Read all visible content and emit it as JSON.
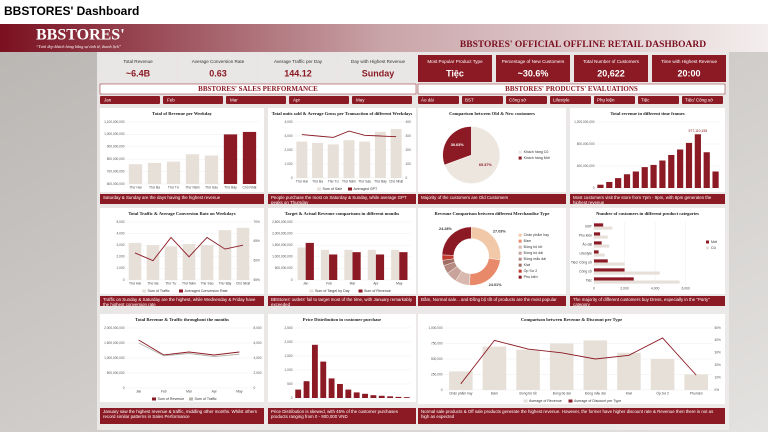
{
  "header": {
    "page_title": "BBSTORES' Dashboard",
    "logo": "BBSTORES'",
    "tagline": "“Tươi đẹp khách hàng bằng sự tinh tế, thanh lịch”",
    "title": "BBSTORES' OFFICIAL OFFLINE RETAIL DASHBOARD"
  },
  "kpis": [
    {
      "label": "Total Revenue",
      "value": "~6.4B"
    },
    {
      "label": "Average Conversion Rate",
      "value": "0.63"
    },
    {
      "label": "Average Traffic per Day",
      "value": "144.12"
    },
    {
      "label": "Day with Highest Revenue",
      "value": "Sunday"
    },
    {
      "label": "Most Popular Product Type",
      "value": "Tiệc"
    },
    {
      "label": "Percentage of New Customers",
      "value": "~30.6%"
    },
    {
      "label": "Total Number of Customers",
      "value": "20,622"
    },
    {
      "label": "Time with Highest Revenue",
      "value": "20:00"
    }
  ],
  "sections": [
    "BBSTORES' SALES PERFORMANCE",
    "BBSTORES' PRODUCTS' EVALUATIONS"
  ],
  "month_tabs": [
    "Jan",
    "Feb",
    "Mar",
    "Apr",
    "May"
  ],
  "product_tabs": [
    "Áo dài",
    "BST",
    "Công sở",
    "Lifestyle",
    "Phụ kiện",
    "Tiệc",
    "Tiệc/ Công sở"
  ],
  "captions": [
    "Saturday & Sunday are the days having the highest revenue",
    "People purchase the most on Saturday & Sunday, while average GPT peaks on Thursday",
    "Traffic on Sunday & Saturday are the highest, while Wednesday & Friday have the highest conversion rate",
    "BBStores' outlets' fail to target most of the time, with January remarkably exceeded",
    "January saw the highest revenue & traffic, middling other months. Whilst others record similar patterns in Sales Performance",
    "Price Distribution is skewed, with 45% of the customer purchases products ranging from 0 - 900,000 VND",
    "Majority of the customers are Old Customers",
    "Most customers visit the store from 7pm - 9pm, with 8pm generates the highest revenue",
    "Đầm, Normal sale... and Đồng bộ tốt of products are the most popular",
    "The majority of different customers buy Dress, especially in the \"Party\" category",
    "Normal sale products & Off sale products generate the highest revenue. However, the former have higher discount rate & Revenue then there is not as high as expected"
  ],
  "chart_data": [
    {
      "type": "bar",
      "title": "Total of Revenue per Weekday",
      "categories": [
        "Thứ Hai",
        "Thứ Ba",
        "Thứ Tư",
        "Thứ Năm",
        "Thứ Sáu",
        "Thứ Bảy",
        "Chủ Nhật"
      ],
      "series": [
        {
          "color": [
            "#e6e0d8",
            "#e6e0d8",
            "#e6e0d8",
            "#e6e0d8",
            "#e6e0d8",
            "#8b1a24",
            "#8b1a24"
          ],
          "values": [
            760000000,
            770000000,
            780000000,
            840000000,
            830000000,
            1000000000,
            1020000000
          ]
        }
      ],
      "ylim": [
        600000000,
        1100000000
      ],
      "yticks": [
        {
          "value": 600000000,
          "label": "600,000,000"
        },
        {
          "value": 700000000,
          "label": "700,000,000"
        },
        {
          "value": 800000000,
          "label": "800,000,000"
        },
        {
          "value": 900000000,
          "label": "900,000,000"
        },
        {
          "value": 1000000000,
          "label": "1,000,000,000"
        },
        {
          "value": 1100000000,
          "label": "1,100,000,000"
        }
      ],
      "grid": true
    },
    {
      "type": "combo",
      "title": "Total units sold & Average Gross per Transaction of different Weekdays",
      "categories": [
        "Thứ Hai",
        "Thứ Ba",
        "Thứ Tư",
        "Thứ Năm",
        "Thứ Sáu",
        "Thứ Bảy",
        "Chủ Nhật"
      ],
      "series": [
        {
          "name": "Sum of Sale",
          "type": "bar",
          "color": "#e6e0d8",
          "values": [
            2600,
            2500,
            2400,
            2700,
            2600,
            3300,
            3500
          ]
        },
        {
          "name": "Averaged GPT",
          "type": "line",
          "axis": "y2",
          "color": "#8b1a24",
          "values": [
            310,
            300,
            290,
            335,
            305,
            300,
            295
          ]
        }
      ],
      "ylim": [
        0,
        4000
      ],
      "yticks": [
        0,
        {
          "value": 1000,
          "label": "1,000"
        },
        {
          "value": 2000,
          "label": "2,000"
        },
        {
          "value": 3000,
          "label": "3,000"
        },
        {
          "value": 4000,
          "label": "4,000"
        }
      ],
      "y2lim": [
        0,
        400
      ],
      "y2ticks": [
        0,
        100,
        200,
        300,
        400
      ],
      "grid": true
    },
    {
      "type": "combo",
      "title": "Total Traffic & Average Conversion Rate on Weekdays",
      "categories": [
        "Thứ Hai",
        "Thứ Ba",
        "Thứ Tư",
        "Thứ Năm",
        "Thứ Sáu",
        "Thứ Bảy",
        "Chủ Nhật"
      ],
      "series": [
        {
          "name": "Sum of Traffic",
          "type": "bar",
          "color": "#e6e0d8",
          "values": [
            3200,
            3000,
            2900,
            3100,
            3000,
            4300,
            4500
          ]
        },
        {
          "name": "Averaged Conversion Rate",
          "type": "line",
          "axis": "y2",
          "color": "#8b1a24",
          "values": [
            0.62,
            0.6,
            0.66,
            0.61,
            0.66,
            0.63,
            0.64
          ]
        }
      ],
      "ylim": [
        0,
        5000
      ],
      "yticks": [
        0,
        {
          "value": 1000,
          "label": "1,000"
        },
        {
          "value": 2000,
          "label": "2,000"
        },
        {
          "value": 3000,
          "label": "3,000"
        },
        {
          "value": 4000,
          "label": "4,000"
        },
        {
          "value": 5000,
          "label": "5,000"
        }
      ],
      "y2lim": [
        0.55,
        0.7
      ],
      "y2ticks": [
        {
          "value": 0.55,
          "label": "55%"
        },
        {
          "value": 0.6,
          "label": "60%"
        },
        {
          "value": 0.65,
          "label": "65%"
        },
        {
          "value": 0.7,
          "label": "70%"
        }
      ],
      "grid": true
    },
    {
      "type": "bar",
      "title": "Target & Actual Revenue comparisons in different months",
      "categories": [
        "Jan",
        "Feb",
        "Mar",
        "Apr",
        "May"
      ],
      "series": [
        {
          "name": "Sum of Target by Day",
          "color": "#e6e0d8",
          "values": [
            1400000000,
            1300000000,
            1300000000,
            1300000000,
            1300000000
          ]
        },
        {
          "name": "Sum of Revenue",
          "color": "#8b1a24",
          "values": [
            1600000000,
            1100000000,
            1200000000,
            1100000000,
            1200000000
          ]
        }
      ],
      "ylim": [
        0,
        2500000000
      ],
      "yticks": [
        0,
        {
          "value": 500000000,
          "label": "500,000,000"
        },
        {
          "value": 1000000000,
          "label": "1,000,000,000"
        },
        {
          "value": 1500000000,
          "label": "1,500,000,000"
        },
        {
          "value": 2000000000,
          "label": "2,000,000,000"
        },
        {
          "value": 2500000000,
          "label": "2,500,000,000"
        }
      ],
      "grid": true
    },
    {
      "type": "combo",
      "title": "Total Revenue & Traffic throughout the months",
      "categories": [
        "Jan",
        "Feb",
        "Mar",
        "Apr",
        "May"
      ],
      "series": [
        {
          "name": "Sum of Revenue",
          "type": "line",
          "color": "#8b1a24",
          "values": [
            1600000000,
            1100000000,
            1200000000,
            1100000000,
            1200000000
          ]
        },
        {
          "name": "Sum of Traffic",
          "type": "line",
          "axis": "y2",
          "color": "#b9b3ad",
          "values": [
            6000,
            4300,
            4600,
            4200,
            4500
          ]
        }
      ],
      "ylim": [
        0,
        2000000000
      ],
      "yticks": [
        0,
        {
          "value": 500000000,
          "label": "500,000,000"
        },
        {
          "value": 1000000000,
          "label": "1,000,000,000"
        },
        {
          "value": 1500000000,
          "label": "1,500,000,000"
        },
        {
          "value": 2000000000,
          "label": "2,000,000,000"
        }
      ],
      "y2lim": [
        0,
        8000
      ],
      "y2ticks": [
        0,
        {
          "value": 2000,
          "label": "2,000"
        },
        {
          "value": 4000,
          "label": "4,000"
        },
        {
          "value": 6000,
          "label": "6,000"
        },
        {
          "value": 8000,
          "label": "8,000"
        }
      ],
      "grid": true
    },
    {
      "type": "bar",
      "title": "Price Distribution in customer purchase",
      "categories": [
        null,
        null,
        null,
        null,
        null,
        null,
        null,
        null,
        null,
        null,
        null,
        null,
        null,
        null
      ],
      "series": [
        {
          "color": "#8b1a24",
          "values": [
            300,
            600,
            1900,
            1300,
            700,
            500,
            300,
            200,
            150,
            100,
            80,
            60,
            40,
            30
          ]
        }
      ],
      "ylim": [
        0,
        2500
      ],
      "yticks": [
        0,
        500,
        {
          "value": 1000,
          "label": "1,000"
        },
        {
          "value": 1500,
          "label": "1,500"
        },
        {
          "value": 2000,
          "label": "2,000"
        },
        {
          "value": 2500,
          "label": "2,500"
        }
      ],
      "grid": true
    },
    {
      "type": "pie",
      "title": "Comparison between Old & New customers",
      "categories": [
        "Khách hàng Cũ",
        "Khách hàng Mới"
      ],
      "values": [
        69.37,
        30.63
      ],
      "value_labels": [
        "69.37%",
        "30.63%"
      ],
      "colors": [
        "#ece6df",
        "#8b1a24"
      ]
    },
    {
      "type": "bar",
      "title": "Total revenue in different time frames",
      "categories": [
        null,
        null,
        null,
        null,
        null,
        null,
        null,
        null,
        null,
        null,
        null,
        null,
        null,
        null
      ],
      "series": [
        {
          "color": "#8b1a24",
          "values": [
            60000000,
            110000000,
            180000000,
            250000000,
            300000000,
            380000000,
            420000000,
            500000000,
            600000000,
            700000000,
            820000000,
            977110155,
            650000000,
            300000000
          ],
          "value_labels": [
            null,
            null,
            null,
            null,
            null,
            null,
            null,
            null,
            null,
            null,
            null,
            "977,110,155",
            null,
            null
          ]
        }
      ],
      "ylim": [
        0,
        1200000000
      ],
      "yticks": [
        0,
        {
          "value": 400000000,
          "label": "400,000,000"
        },
        {
          "value": 800000000,
          "label": "800,000,000"
        },
        {
          "value": 1200000000,
          "label": "1,200,000,000"
        }
      ],
      "grid": true
    },
    {
      "type": "pie",
      "donut": true,
      "title": "Revenue Comparison between different Merchandise Type",
      "categories": [
        "Chân phẩm hay",
        "Đầm",
        "Đồng bộ tốt",
        "Đồng bộ dài",
        "Đồng mẫu dài",
        "Kiwi",
        "Ốp Sư 2",
        "Phụ kiện"
      ],
      "values": [
        27.03,
        24.01,
        8,
        6,
        4.68,
        3,
        3,
        24.28
      ],
      "value_labels": [
        "27.03%",
        "24.01%",
        null,
        null,
        null,
        null,
        null,
        "24.28%"
      ],
      "colors": [
        "#f2c9a8",
        "#e88a6a",
        "#d9b8b0",
        "#c7a39c",
        "#b58a82",
        "#a06b60",
        "#c0392b",
        "#8b1a24"
      ]
    },
    {
      "type": "hbar",
      "title": "Number of customers in different product categories",
      "categories": [
        "BST",
        "Phụ kiện",
        "Áo dài",
        "Lifestyle",
        "Tiệc/ Công sở",
        "Công sở",
        "Tiệc"
      ],
      "series": [
        {
          "name": "Mới",
          "color": "#8b1a24",
          "values": [
            600,
            400,
            500,
            300,
            900,
            2000,
            2600
          ]
        },
        {
          "name": "Cũ",
          "color": "#e6e0d8",
          "values": [
            1200,
            900,
            1000,
            700,
            2000,
            4300,
            5600
          ]
        }
      ],
      "xlim": [
        0,
        7000
      ],
      "xticks": [
        0,
        {
          "value": 2000,
          "label": "2,000"
        },
        {
          "value": 4000,
          "label": "4,000"
        },
        {
          "value": 6000,
          "label": "6,000"
        }
      ],
      "grid": true
    },
    {
      "type": "combo",
      "title": "Comparison between Revenue & Discount per Type",
      "categories": [
        "Chân phẩm hay",
        "Đầm",
        "Đồng bộ tốt",
        "Đồng bộ dài",
        "Đồng mẫu dài",
        "Kiwi",
        "Ốp Sư 2",
        "Phụ kiện"
      ],
      "series": [
        {
          "name": "Average of Revenue",
          "type": "bar",
          "color": "#e6e0d8",
          "values": [
            300000,
            700000,
            650000,
            750000,
            800000,
            600000,
            500000,
            250000
          ]
        },
        {
          "name": "Average of Discount per Type",
          "type": "line",
          "axis": "y2",
          "color": "#8b1a24",
          "values": [
            0.05,
            0.4,
            0.33,
            0.3,
            0.25,
            0.28,
            0.42,
            0.12
          ]
        }
      ],
      "ylim": [
        0,
        1000000
      ],
      "yticks": [
        0,
        {
          "value": 250000,
          "label": "250,000"
        },
        {
          "value": 500000,
          "label": "500,000"
        },
        {
          "value": 750000,
          "label": "750,000"
        },
        {
          "value": 1000000,
          "label": "1,000,000"
        }
      ],
      "y2lim": [
        0,
        0.5
      ],
      "y2ticks": [
        {
          "value": 0,
          "label": "0%"
        },
        {
          "value": 0.1,
          "label": "10%"
        },
        {
          "value": 0.2,
          "label": "20%"
        },
        {
          "value": 0.3,
          "label": "30%"
        },
        {
          "value": 0.4,
          "label": "40%"
        },
        {
          "value": 0.5,
          "label": "50%"
        }
      ],
      "grid": true
    }
  ]
}
